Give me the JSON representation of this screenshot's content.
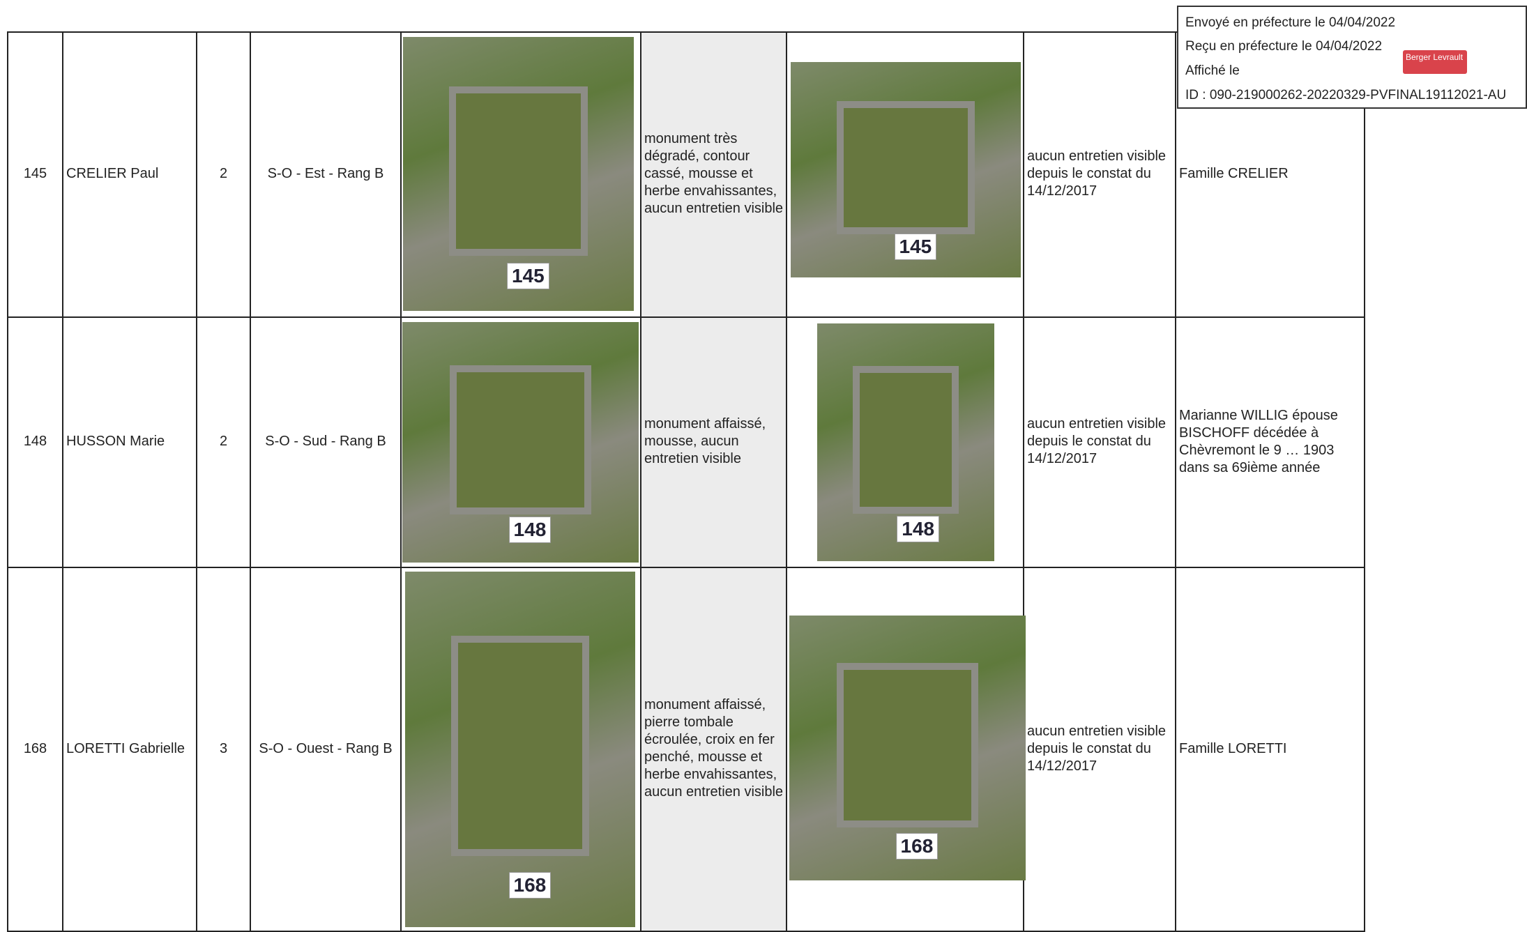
{
  "stamp": {
    "lines": [
      "Envoyé en préfecture le 04/04/2022",
      "Reçu en préfecture le 04/04/2022",
      "Affiché le",
      "ID : 090-219000262-20220329-PVFINAL19112021-AU"
    ],
    "logo": "Berger Levrault"
  },
  "table": {
    "rows": [
      [
        "145",
        "CRELIER Paul",
        "2",
        "S-O - Est - Rang B",
        "monument très dégradé, contour cassé, mousse et herbe envahissantes, aucun entretien visible",
        "aucun entretien visible depuis le constat du 14/12/2017",
        "Famille CRELIER"
      ],
      [
        "148",
        "HUSSON Marie",
        "2",
        "S-O - Sud - Rang B",
        "monument affaissé, mousse, aucun entretien visible",
        "aucun entretien visible depuis le constat du 14/12/2017",
        "Marianne WILLIG épouse BISCHOFF décédée à Chèvremont le 9 … 1903 dans sa 69ième année"
      ],
      [
        "168",
        "LORETTI Gabrielle",
        "3",
        "S-O - Ouest - Rang B",
        "monument affaissé, pierre tombale écroulée, croix en fer penché, mousse et herbe envahissantes, aucun entretien visible",
        "aucun entretien visible depuis le constat du 14/12/2017",
        "Famille LORETTI"
      ]
    ],
    "photo_tags": [
      [
        "145",
        "145"
      ],
      [
        "148",
        "148"
      ],
      [
        "168",
        "168"
      ]
    ]
  }
}
